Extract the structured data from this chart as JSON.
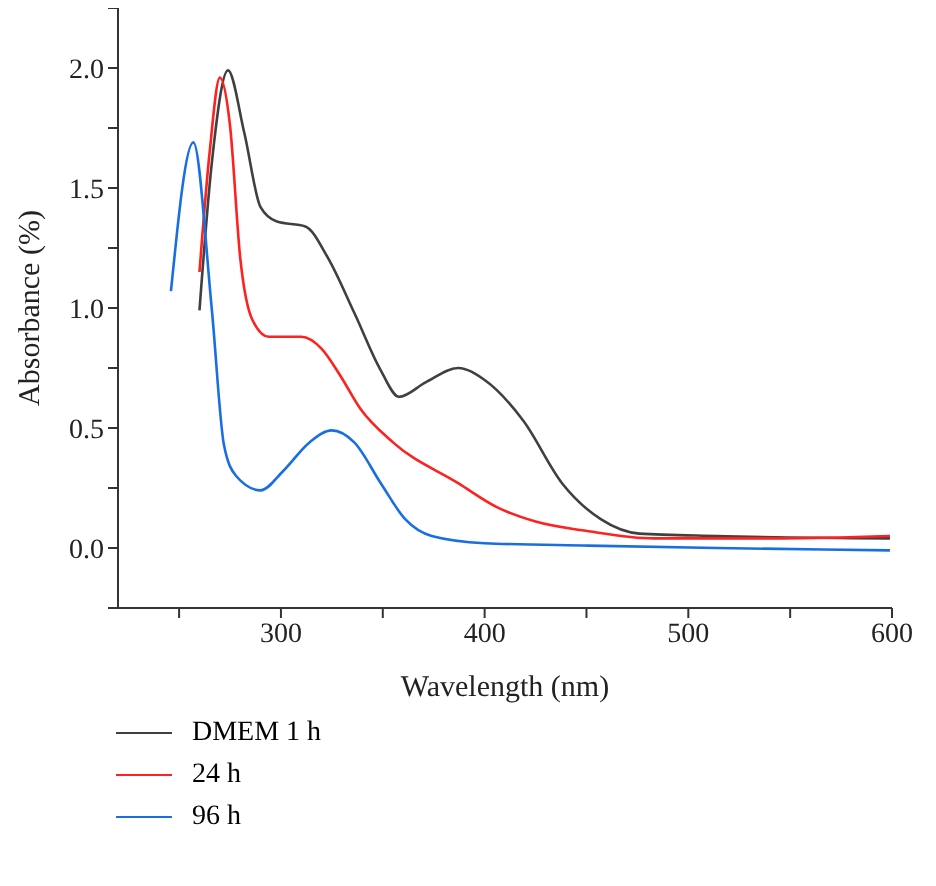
{
  "chart_data": {
    "type": "line",
    "xlabel": "Wavelength (nm)",
    "ylabel": "Absorbance (%)",
    "xlim": [
      220,
      600
    ],
    "xticks": [
      {
        "value": 250,
        "label": null
      },
      300,
      {
        "value": 350,
        "label": null
      },
      400,
      {
        "value": 450,
        "label": null
      },
      500,
      {
        "value": 550,
        "label": null
      },
      600
    ],
    "ylim": [
      -0.25,
      2.25
    ],
    "yticks": [
      {
        "value": -0.25,
        "label": null
      },
      "0.0",
      {
        "value": 0.25,
        "label": null
      },
      0.5,
      {
        "value": 0.75,
        "label": null
      },
      "1.0",
      {
        "value": 1.25,
        "label": null
      },
      1.5,
      {
        "value": 1.75,
        "label": null
      },
      "2.0",
      {
        "value": 2.25,
        "label": null
      }
    ],
    "grid": false,
    "legend": "bottom",
    "marker": "none",
    "line_style": "solid",
    "series": [
      {
        "name": "DMEM 1 h",
        "color": "#404040",
        "x": [
          260,
          266,
          274,
          282,
          290,
          298,
          312,
          323,
          336,
          349,
          358,
          371,
          387,
          400,
          419,
          438,
          457,
          476,
          514,
          599
        ],
        "values": [
          0.99,
          1.6,
          1.99,
          1.73,
          1.42,
          1.36,
          1.34,
          1.21,
          0.98,
          0.74,
          0.63,
          0.69,
          0.75,
          0.7,
          0.53,
          0.27,
          0.12,
          0.06,
          0.05,
          0.04
        ]
      },
      {
        "name": "24 h",
        "color": "#ff2020",
        "x": [
          260,
          265,
          270,
          275,
          280,
          286,
          294,
          310,
          320,
          329,
          339,
          355,
          387,
          406,
          425,
          451,
          483,
          546,
          599
        ],
        "values": [
          1.15,
          1.65,
          1.96,
          1.76,
          1.21,
          0.95,
          0.88,
          0.88,
          0.83,
          0.72,
          0.58,
          0.44,
          0.27,
          0.17,
          0.11,
          0.07,
          0.04,
          0.04,
          0.05
        ]
      },
      {
        "name": "96 h",
        "color": "#1a6fe0",
        "x": [
          246,
          257,
          266,
          272,
          278,
          290,
          301,
          314,
          325,
          336,
          349,
          361,
          374,
          400,
          451,
          514,
          599
        ],
        "values": [
          1.07,
          1.69,
          1.0,
          0.43,
          0.3,
          0.24,
          0.32,
          0.44,
          0.49,
          0.44,
          0.27,
          0.12,
          0.05,
          0.02,
          0.01,
          0,
          -0.01
        ]
      }
    ]
  }
}
